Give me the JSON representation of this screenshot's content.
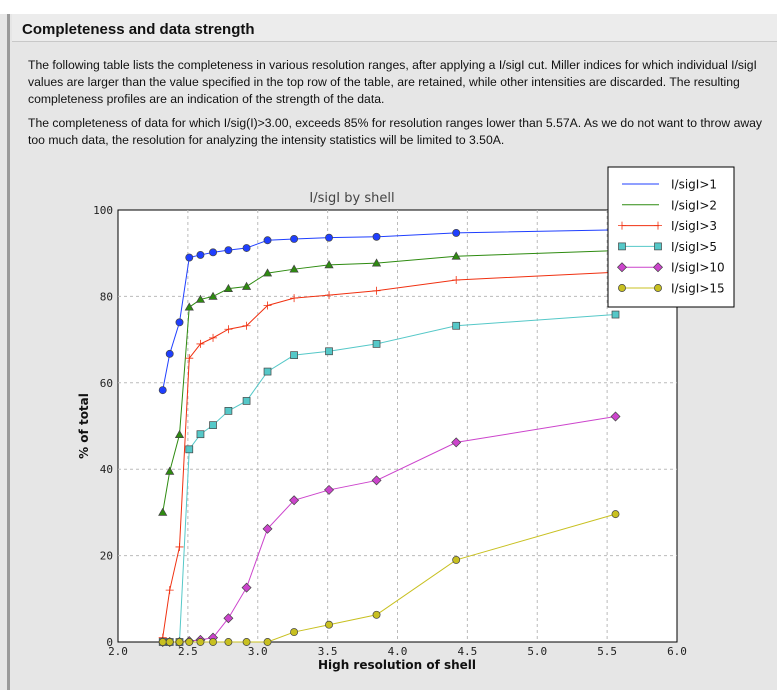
{
  "section": {
    "title": "Completeness and data strength",
    "paragraph1": "The following table lists the completeness in various resolution ranges, after applying a I/sigI cut. Miller indices for which individual I/sigI values are larger than the value specified in the top row of the table, are retained, while other intensities are discarded. The resulting completeness profiles are an indication of the strength of the data.",
    "paragraph2": "The completeness of data for which I/sig(I)>3.00, exceeds  85% for resolution ranges lower than 5.57A. As we do not want to throw away too much data, the resolution for analyzing the intensity statistics will be limited to 3.50A."
  },
  "chart_data": {
    "type": "line",
    "title": "I/sigI by shell",
    "xlabel": "High resolution of shell",
    "ylabel": "% of total",
    "xlim": [
      2.0,
      6.0
    ],
    "ylim": [
      0,
      100
    ],
    "xticks": [
      "2.0",
      "2.5",
      "3.0",
      "3.5",
      "4.0",
      "4.5",
      "5.0",
      "5.5",
      "6.0"
    ],
    "yticks": [
      "0",
      "20",
      "40",
      "60",
      "80",
      "100"
    ],
    "grid": true,
    "legend_position": "top-right",
    "x": [
      2.32,
      2.37,
      2.44,
      2.51,
      2.59,
      2.68,
      2.79,
      2.92,
      3.07,
      3.26,
      3.51,
      3.85,
      4.42,
      5.56
    ],
    "series": [
      {
        "name": "I/sigI>1",
        "color": "#1f3fff",
        "marker": "circle",
        "values": [
          58.3,
          66.7,
          74.0,
          89.0,
          89.6,
          90.2,
          90.7,
          91.2,
          93.0,
          93.3,
          93.6,
          93.8,
          94.7,
          95.4
        ]
      },
      {
        "name": "I/sigI>2",
        "color": "#2e8b10",
        "marker": "triangle",
        "values": [
          30.0,
          39.5,
          48.0,
          77.5,
          79.3,
          80.0,
          81.8,
          82.3,
          85.4,
          86.3,
          87.3,
          87.7,
          89.3,
          90.6
        ]
      },
      {
        "name": "I/sigI>3",
        "color": "#f03010",
        "marker": "plus",
        "values": [
          1.0,
          12.0,
          22.0,
          65.7,
          69.0,
          70.4,
          72.4,
          73.2,
          77.9,
          79.6,
          80.3,
          81.3,
          83.8,
          85.6
        ]
      },
      {
        "name": "I/sigI>5",
        "color": "#55c8c8",
        "marker": "square",
        "values": [
          0,
          0,
          0,
          44.6,
          48.1,
          50.2,
          53.5,
          55.8,
          62.6,
          66.4,
          67.3,
          69.0,
          73.2,
          75.8
        ]
      },
      {
        "name": "I/sigI>10",
        "color": "#cc44cc",
        "marker": "diamond",
        "values": [
          0,
          0,
          0,
          0.2,
          0.5,
          1.0,
          5.5,
          12.6,
          26.2,
          32.8,
          35.2,
          37.4,
          46.2,
          52.2
        ]
      },
      {
        "name": "I/sigI>15",
        "color": "#c8c020",
        "marker": "circle",
        "values": [
          0,
          0,
          0,
          0,
          0,
          0,
          0,
          0,
          0,
          2.3,
          4.0,
          6.3,
          19.0,
          29.6
        ]
      }
    ]
  }
}
